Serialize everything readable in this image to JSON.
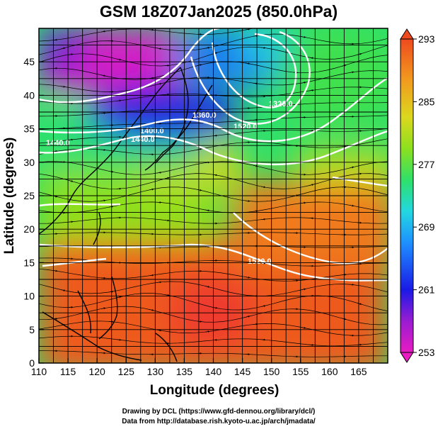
{
  "title": "GSM 18Z07Jan2025 (850.0hPa)",
  "credits": {
    "line1": "Drawing by DCL (https://www.gfd-dennou.org/library/dcl/)",
    "line2": "Data from http://database.rish.kyoto-u.ac.jp/arch/jmadata/"
  },
  "map": {
    "xlabel": "Longitude (degrees)",
    "ylabel": "Latitude  (degrees)",
    "xrange": [
      110,
      170
    ],
    "yrange": [
      0,
      50
    ],
    "xticks": [
      "110",
      "115",
      "120",
      "125",
      "130",
      "135",
      "140",
      "145",
      "150",
      "155",
      "160",
      "165"
    ],
    "yticks": [
      "0",
      "5",
      "10",
      "15",
      "20",
      "25",
      "30",
      "35",
      "40",
      "45"
    ],
    "grid": "on",
    "contour_labels": [
      "1400.0",
      "1440.0",
      "1360.0",
      "1440.0",
      "1320.0",
      "1520.0",
      "1520.0"
    ]
  },
  "colorbar": {
    "ticks": [
      "293",
      "285",
      "277",
      "269",
      "261",
      "253"
    ],
    "range": [
      253,
      293
    ],
    "colors": [
      "#e81cc2",
      "#8a1bd6",
      "#1a1ae6",
      "#1e90ff",
      "#22d8e0",
      "#2fe06a",
      "#8ce01e",
      "#dcd81e",
      "#f29a1e",
      "#ee4a1e"
    ]
  }
}
